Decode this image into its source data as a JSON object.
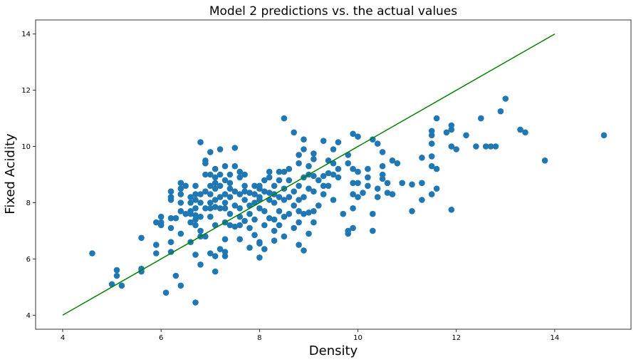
{
  "chart_data": {
    "type": "scatter",
    "title": "Model 2 predictions vs. the actual values",
    "xlabel": "Density",
    "ylabel": "Fixed Acidity",
    "xlim": [
      3.45,
      15.55
    ],
    "ylim": [
      3.5,
      14.5
    ],
    "xticks": [
      4,
      6,
      8,
      10,
      12,
      14
    ],
    "yticks": [
      4,
      6,
      8,
      10,
      12,
      14
    ],
    "grid": false,
    "colors": {
      "points": "#1f77b4",
      "reference_line": "#008000"
    },
    "reference_line": {
      "x": [
        4,
        14
      ],
      "y": [
        4,
        14
      ]
    },
    "points": [
      [
        4.6,
        6.2
      ],
      [
        5.0,
        5.1
      ],
      [
        5.1,
        5.6
      ],
      [
        5.1,
        5.4
      ],
      [
        5.2,
        5.05
      ],
      [
        5.6,
        5.65
      ],
      [
        5.6,
        5.55
      ],
      [
        5.6,
        6.75
      ],
      [
        5.9,
        6.2
      ],
      [
        5.9,
        6.5
      ],
      [
        5.9,
        7.3
      ],
      [
        6.0,
        7.2
      ],
      [
        6.0,
        7.5
      ],
      [
        6.0,
        7.3
      ],
      [
        6.1,
        4.8
      ],
      [
        6.2,
        6.25
      ],
      [
        6.2,
        6.6
      ],
      [
        6.2,
        7.1
      ],
      [
        6.2,
        7.45
      ],
      [
        6.2,
        8.1
      ],
      [
        6.2,
        8.2
      ],
      [
        6.2,
        8.4
      ],
      [
        6.3,
        7.45
      ],
      [
        6.3,
        5.4
      ],
      [
        6.4,
        5.05
      ],
      [
        6.4,
        6.9
      ],
      [
        6.4,
        7.7
      ],
      [
        6.4,
        8.0
      ],
      [
        6.4,
        8.3
      ],
      [
        6.4,
        8.5
      ],
      [
        6.4,
        8.7
      ],
      [
        6.5,
        7.6
      ],
      [
        6.5,
        8.6
      ],
      [
        6.6,
        6.6
      ],
      [
        6.6,
        7.3
      ],
      [
        6.6,
        7.6
      ],
      [
        6.6,
        7.7
      ],
      [
        6.6,
        8.0
      ],
      [
        6.6,
        8.2
      ],
      [
        6.7,
        4.45
      ],
      [
        6.7,
        6.15
      ],
      [
        6.7,
        7.2
      ],
      [
        6.7,
        7.4
      ],
      [
        6.7,
        7.55
      ],
      [
        6.7,
        7.8
      ],
      [
        6.7,
        8.1
      ],
      [
        6.7,
        8.3
      ],
      [
        6.7,
        8.6
      ],
      [
        6.8,
        5.8
      ],
      [
        6.8,
        6.8
      ],
      [
        6.8,
        7.0
      ],
      [
        6.8,
        7.5
      ],
      [
        6.8,
        8.0
      ],
      [
        6.8,
        8.3
      ],
      [
        6.8,
        10.15
      ],
      [
        6.9,
        6.8
      ],
      [
        6.9,
        7.8
      ],
      [
        6.9,
        8.4
      ],
      [
        6.9,
        9.0
      ],
      [
        6.9,
        9.5
      ],
      [
        6.9,
        9.4
      ],
      [
        7.0,
        6.2
      ],
      [
        7.0,
        7.5
      ],
      [
        7.0,
        7.8
      ],
      [
        7.0,
        8.0
      ],
      [
        7.0,
        8.3
      ],
      [
        7.0,
        8.6
      ],
      [
        7.0,
        9.0
      ],
      [
        7.0,
        9.8
      ],
      [
        7.1,
        5.55
      ],
      [
        7.1,
        6.1
      ],
      [
        7.1,
        7.2
      ],
      [
        7.1,
        7.85
      ],
      [
        7.1,
        8.1
      ],
      [
        7.1,
        8.5
      ],
      [
        7.1,
        8.7
      ],
      [
        7.1,
        8.9
      ],
      [
        7.1,
        9.2
      ],
      [
        7.2,
        6.35
      ],
      [
        7.2,
        7.8
      ],
      [
        7.2,
        8.2
      ],
      [
        7.2,
        8.6
      ],
      [
        7.2,
        9.0
      ],
      [
        7.2,
        9.9
      ],
      [
        7.3,
        6.1
      ],
      [
        7.3,
        6.25
      ],
      [
        7.3,
        6.7
      ],
      [
        7.3,
        7.3
      ],
      [
        7.3,
        7.8
      ],
      [
        7.3,
        8.0
      ],
      [
        7.3,
        8.3
      ],
      [
        7.3,
        8.8
      ],
      [
        7.3,
        9.3
      ],
      [
        7.4,
        7.2
      ],
      [
        7.4,
        7.6
      ],
      [
        7.4,
        8.2
      ],
      [
        7.4,
        8.5
      ],
      [
        7.4,
        8.7
      ],
      [
        7.4,
        9.0
      ],
      [
        7.5,
        7.15
      ],
      [
        7.5,
        7.9
      ],
      [
        7.5,
        8.4
      ],
      [
        7.5,
        9.3
      ],
      [
        7.5,
        9.95
      ],
      [
        7.6,
        6.7
      ],
      [
        7.6,
        7.2
      ],
      [
        7.6,
        7.5
      ],
      [
        7.6,
        7.8
      ],
      [
        7.6,
        8.3
      ],
      [
        7.6,
        8.9
      ],
      [
        7.6,
        9.1
      ],
      [
        7.7,
        7.35
      ],
      [
        7.7,
        8.1
      ],
      [
        7.7,
        8.4
      ],
      [
        7.7,
        8.6
      ],
      [
        7.7,
        9.0
      ],
      [
        7.8,
        6.4
      ],
      [
        7.8,
        7.1
      ],
      [
        7.8,
        7.6
      ],
      [
        7.8,
        7.9
      ],
      [
        7.8,
        8.35
      ],
      [
        7.9,
        6.85
      ],
      [
        7.9,
        7.4
      ],
      [
        7.9,
        8.0
      ],
      [
        7.9,
        8.3
      ],
      [
        7.9,
        8.6
      ],
      [
        8.0,
        6.05
      ],
      [
        8.0,
        6.55
      ],
      [
        8.0,
        6.6
      ],
      [
        8.0,
        7.8
      ],
      [
        8.0,
        8.1
      ],
      [
        8.0,
        8.2
      ],
      [
        8.0,
        8.5
      ],
      [
        8.0,
        8.6
      ],
      [
        8.1,
        6.35
      ],
      [
        8.1,
        7.2
      ],
      [
        8.1,
        7.7
      ],
      [
        8.1,
        8.4
      ],
      [
        8.1,
        8.8
      ],
      [
        8.2,
        7.45
      ],
      [
        8.2,
        8.1
      ],
      [
        8.2,
        8.35
      ],
      [
        8.2,
        8.9
      ],
      [
        8.2,
        9.1
      ],
      [
        8.3,
        6.65
      ],
      [
        8.3,
        7.0
      ],
      [
        8.3,
        7.4
      ],
      [
        8.3,
        8.0
      ],
      [
        8.3,
        8.3
      ],
      [
        8.3,
        8.6
      ],
      [
        8.4,
        7.2
      ],
      [
        8.4,
        7.7
      ],
      [
        8.4,
        8.2
      ],
      [
        8.4,
        8.8
      ],
      [
        8.4,
        9.1
      ],
      [
        8.5,
        6.8
      ],
      [
        8.5,
        7.5
      ],
      [
        8.5,
        8.1
      ],
      [
        8.5,
        8.5
      ],
      [
        8.5,
        9.1
      ],
      [
        8.5,
        11.0
      ],
      [
        8.6,
        7.6
      ],
      [
        8.6,
        8.2
      ],
      [
        8.6,
        8.8
      ],
      [
        8.6,
        9.2
      ],
      [
        8.7,
        7.1
      ],
      [
        8.7,
        7.9
      ],
      [
        8.7,
        8.4
      ],
      [
        8.7,
        10.5
      ],
      [
        8.8,
        6.5
      ],
      [
        8.8,
        7.3
      ],
      [
        8.8,
        7.7
      ],
      [
        8.8,
        8.1
      ],
      [
        8.8,
        8.6
      ],
      [
        8.8,
        9.4
      ],
      [
        8.8,
        9.7
      ],
      [
        8.9,
        6.3
      ],
      [
        8.9,
        7.6
      ],
      [
        8.9,
        8.2
      ],
      [
        8.9,
        8.9
      ],
      [
        8.9,
        9.9
      ],
      [
        8.9,
        10.25
      ],
      [
        9.0,
        6.9
      ],
      [
        9.0,
        7.65
      ],
      [
        9.0,
        8.5
      ],
      [
        9.0,
        9.0
      ],
      [
        9.0,
        9.3
      ],
      [
        9.1,
        7.3
      ],
      [
        9.1,
        7.7
      ],
      [
        9.1,
        8.4
      ],
      [
        9.1,
        8.95
      ],
      [
        9.1,
        9.55
      ],
      [
        9.1,
        9.75
      ],
      [
        9.2,
        7.9
      ],
      [
        9.2,
        8.8
      ],
      [
        9.3,
        8.3
      ],
      [
        9.3,
        8.6
      ],
      [
        9.3,
        8.95
      ],
      [
        9.3,
        10.2
      ],
      [
        9.4,
        8.6
      ],
      [
        9.4,
        9.05
      ],
      [
        9.4,
        9.5
      ],
      [
        9.5,
        8.1
      ],
      [
        9.5,
        9.0
      ],
      [
        9.5,
        9.4
      ],
      [
        9.5,
        9.9
      ],
      [
        9.6,
        8.9
      ],
      [
        9.6,
        9.2
      ],
      [
        9.6,
        10.15
      ],
      [
        9.7,
        7.6
      ],
      [
        9.8,
        6.9
      ],
      [
        9.8,
        7.0
      ],
      [
        9.8,
        9.4
      ],
      [
        9.8,
        9.7
      ],
      [
        9.9,
        7.1
      ],
      [
        9.9,
        7.8
      ],
      [
        9.9,
        8.3
      ],
      [
        9.9,
        8.7
      ],
      [
        9.9,
        9.2
      ],
      [
        9.9,
        10.45
      ],
      [
        10.0,
        8.2
      ],
      [
        10.0,
        8.7
      ],
      [
        10.0,
        9.1
      ],
      [
        10.0,
        10.35
      ],
      [
        10.1,
        8.35
      ],
      [
        10.2,
        8.6
      ],
      [
        10.2,
        8.9
      ],
      [
        10.2,
        9.2
      ],
      [
        10.3,
        7.0
      ],
      [
        10.3,
        7.6
      ],
      [
        10.3,
        10.25
      ],
      [
        10.4,
        8.2
      ],
      [
        10.4,
        8.5
      ],
      [
        10.4,
        10.1
      ],
      [
        10.5,
        8.85
      ],
      [
        10.5,
        9.0
      ],
      [
        10.5,
        9.3
      ],
      [
        10.5,
        9.8
      ],
      [
        10.6,
        8.35
      ],
      [
        10.6,
        8.7
      ],
      [
        10.7,
        8.3
      ],
      [
        10.7,
        9.5
      ],
      [
        10.8,
        9.4
      ],
      [
        10.9,
        8.7
      ],
      [
        11.1,
        7.7
      ],
      [
        11.1,
        8.65
      ],
      [
        11.3,
        8.1
      ],
      [
        11.3,
        8.7
      ],
      [
        11.3,
        9.6
      ],
      [
        11.5,
        8.3
      ],
      [
        11.5,
        9.3
      ],
      [
        11.5,
        9.65
      ],
      [
        11.5,
        10.1
      ],
      [
        11.5,
        10.4
      ],
      [
        11.5,
        10.55
      ],
      [
        11.6,
        8.5
      ],
      [
        11.6,
        9.2
      ],
      [
        11.6,
        11.0
      ],
      [
        11.8,
        10.5
      ],
      [
        11.9,
        7.75
      ],
      [
        11.9,
        10.0
      ],
      [
        11.9,
        10.6
      ],
      [
        11.9,
        10.75
      ],
      [
        12.0,
        9.9
      ],
      [
        12.2,
        10.4
      ],
      [
        12.4,
        10.0
      ],
      [
        12.5,
        11.0
      ],
      [
        12.6,
        10.0
      ],
      [
        12.7,
        10.0
      ],
      [
        12.8,
        10.0
      ],
      [
        12.9,
        11.25
      ],
      [
        13.0,
        11.7
      ],
      [
        13.3,
        10.6
      ],
      [
        13.4,
        10.5
      ],
      [
        13.8,
        9.5
      ],
      [
        15.0,
        10.4
      ]
    ]
  }
}
